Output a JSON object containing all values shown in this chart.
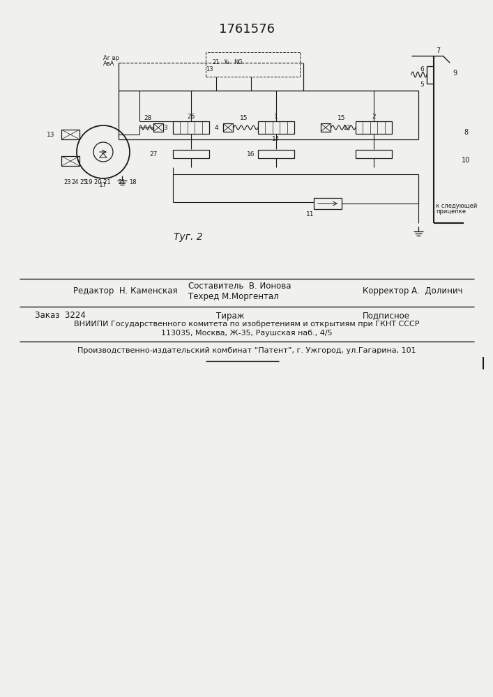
{
  "title": "1761576",
  "fig_label": "Τуг. 2",
  "background_color": "#f0f0ec",
  "footer": {
    "editor_label": "Редактор  Н. Каменская",
    "composer_label": "Составитель  В. Ионова",
    "techred_label": "Техред М.Моргентал",
    "corrector_label": "Корректор А.  Долинич",
    "order_label": "Заказ  3224",
    "tirazh_label": "Тираж",
    "podpisnoe_label": "Подписное",
    "vniip_line1": "ВНИИПИ Государственного комитета по изобретениям и открытиям при ГКНТ СССР",
    "vniip_line2": "113035, Москва, Ж-35, Раушская наб., 4/5",
    "proizv_line": "Производственно-издательский комбинат “Патент”, г. Ужгород, ул.Гагарина, 101"
  },
  "diagram": {
    "bg": "#f0f0ec",
    "lc": "#1a1a1a"
  }
}
